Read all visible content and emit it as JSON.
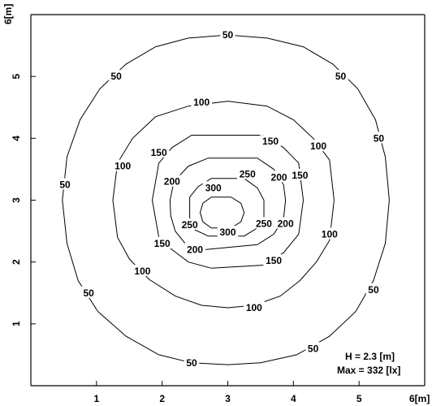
{
  "chart_data": {
    "type": "contour",
    "xlabel": "6[m]",
    "ylabel": "6[m]",
    "xlim": [
      0,
      6
    ],
    "ylim": [
      0,
      6
    ],
    "x_ticks": [
      1,
      2,
      3,
      4,
      5
    ],
    "y_ticks": [
      1,
      2,
      3,
      4,
      5
    ],
    "info_lines": [
      "H =  2.3  [m]",
      "Max = 332  [lx]"
    ],
    "contours": [
      {
        "level": 50,
        "label": "50",
        "points": [
          [
            3.0,
            5.67
          ],
          [
            3.6,
            5.62
          ],
          [
            4.15,
            5.48
          ],
          [
            4.6,
            5.2
          ],
          [
            4.98,
            4.8
          ],
          [
            5.25,
            4.3
          ],
          [
            5.4,
            3.7
          ],
          [
            5.46,
            3.0
          ],
          [
            5.4,
            2.3
          ],
          [
            5.22,
            1.7
          ],
          [
            4.95,
            1.2
          ],
          [
            4.55,
            0.8
          ],
          [
            4.05,
            0.5
          ],
          [
            3.5,
            0.37
          ],
          [
            3.0,
            0.34
          ],
          [
            2.45,
            0.37
          ],
          [
            1.95,
            0.5
          ],
          [
            1.45,
            0.8
          ],
          [
            1.02,
            1.2
          ],
          [
            0.72,
            1.7
          ],
          [
            0.55,
            2.3
          ],
          [
            0.48,
            3.0
          ],
          [
            0.55,
            3.7
          ],
          [
            0.75,
            4.3
          ],
          [
            1.05,
            4.8
          ],
          [
            1.45,
            5.2
          ],
          [
            1.9,
            5.48
          ],
          [
            2.4,
            5.62
          ]
        ],
        "label_positions": [
          [
            3.0,
            5.67
          ],
          [
            4.72,
            5.0
          ],
          [
            5.3,
            4.0
          ],
          [
            5.22,
            1.55
          ],
          [
            4.3,
            0.6
          ],
          [
            2.45,
            0.37
          ],
          [
            0.88,
            1.5
          ],
          [
            0.52,
            3.25
          ],
          [
            1.3,
            5.0
          ]
        ]
      },
      {
        "level": 100,
        "label": "100",
        "points": [
          [
            3.0,
            4.6
          ],
          [
            3.6,
            4.52
          ],
          [
            4.0,
            4.3
          ],
          [
            4.3,
            4.0
          ],
          [
            4.55,
            3.65
          ],
          [
            4.62,
            3.0
          ],
          [
            4.55,
            2.35
          ],
          [
            4.35,
            2.0
          ],
          [
            4.1,
            1.7
          ],
          [
            3.8,
            1.45
          ],
          [
            3.4,
            1.3
          ],
          [
            3.0,
            1.26
          ],
          [
            2.6,
            1.3
          ],
          [
            2.2,
            1.45
          ],
          [
            1.8,
            1.72
          ],
          [
            1.5,
            2.05
          ],
          [
            1.32,
            2.4
          ],
          [
            1.25,
            3.0
          ],
          [
            1.32,
            3.6
          ],
          [
            1.55,
            4.0
          ],
          [
            1.9,
            4.35
          ],
          [
            2.4,
            4.52
          ]
        ],
        "label_positions": [
          [
            2.6,
            4.58
          ],
          [
            4.38,
            3.87
          ],
          [
            4.55,
            2.45
          ],
          [
            3.4,
            1.26
          ],
          [
            1.7,
            1.85
          ],
          [
            1.4,
            3.55
          ]
        ]
      },
      {
        "level": 150,
        "label": "150",
        "points": [
          [
            2.8,
            4.05
          ],
          [
            3.55,
            4.05
          ],
          [
            3.85,
            3.85
          ],
          [
            4.08,
            3.6
          ],
          [
            4.15,
            3.0
          ],
          [
            4.08,
            2.45
          ],
          [
            3.85,
            2.15
          ],
          [
            3.55,
            1.95
          ],
          [
            2.75,
            1.9
          ],
          [
            2.4,
            2.0
          ],
          [
            2.15,
            2.2
          ],
          [
            1.95,
            2.4
          ],
          [
            1.85,
            3.0
          ],
          [
            1.95,
            3.6
          ],
          [
            2.15,
            3.85
          ],
          [
            2.45,
            4.05
          ]
        ],
        "label_positions": [
          [
            3.65,
            3.95
          ],
          [
            4.1,
            3.4
          ],
          [
            3.7,
            2.02
          ],
          [
            2.0,
            2.3
          ],
          [
            1.95,
            3.77
          ]
        ]
      },
      {
        "level": 200,
        "label": "200",
        "points": [
          [
            2.7,
            3.68
          ],
          [
            3.45,
            3.68
          ],
          [
            3.7,
            3.5
          ],
          [
            3.85,
            3.25
          ],
          [
            3.88,
            3.0
          ],
          [
            3.85,
            2.7
          ],
          [
            3.7,
            2.45
          ],
          [
            3.45,
            2.28
          ],
          [
            2.65,
            2.2
          ],
          [
            2.35,
            2.3
          ],
          [
            2.2,
            2.5
          ],
          [
            2.13,
            2.75
          ],
          [
            2.12,
            3.0
          ],
          [
            2.18,
            3.3
          ],
          [
            2.4,
            3.55
          ]
        ],
        "label_positions": [
          [
            3.78,
            3.37
          ],
          [
            3.88,
            2.62
          ],
          [
            2.5,
            2.2
          ],
          [
            2.15,
            3.3
          ]
        ]
      },
      {
        "level": 250,
        "label": "250",
        "points": [
          [
            2.75,
            3.35
          ],
          [
            3.25,
            3.35
          ],
          [
            3.45,
            3.2
          ],
          [
            3.55,
            3.0
          ],
          [
            3.55,
            2.72
          ],
          [
            3.45,
            2.55
          ],
          [
            3.25,
            2.42
          ],
          [
            2.7,
            2.42
          ],
          [
            2.5,
            2.52
          ],
          [
            2.42,
            2.72
          ],
          [
            2.42,
            3.05
          ],
          [
            2.55,
            3.22
          ]
        ],
        "label_positions": [
          [
            3.3,
            3.42
          ],
          [
            3.55,
            2.62
          ],
          [
            2.42,
            2.6
          ]
        ]
      },
      {
        "level": 300,
        "label": "300",
        "points": [
          [
            2.75,
            3.05
          ],
          [
            3.05,
            3.05
          ],
          [
            3.2,
            2.95
          ],
          [
            3.25,
            2.8
          ],
          [
            3.2,
            2.65
          ],
          [
            3.05,
            2.55
          ],
          [
            2.75,
            2.55
          ],
          [
            2.62,
            2.65
          ],
          [
            2.58,
            2.8
          ],
          [
            2.62,
            2.95
          ]
        ],
        "label_positions": [
          [
            2.78,
            3.2
          ],
          [
            3.0,
            2.48
          ]
        ]
      }
    ]
  }
}
